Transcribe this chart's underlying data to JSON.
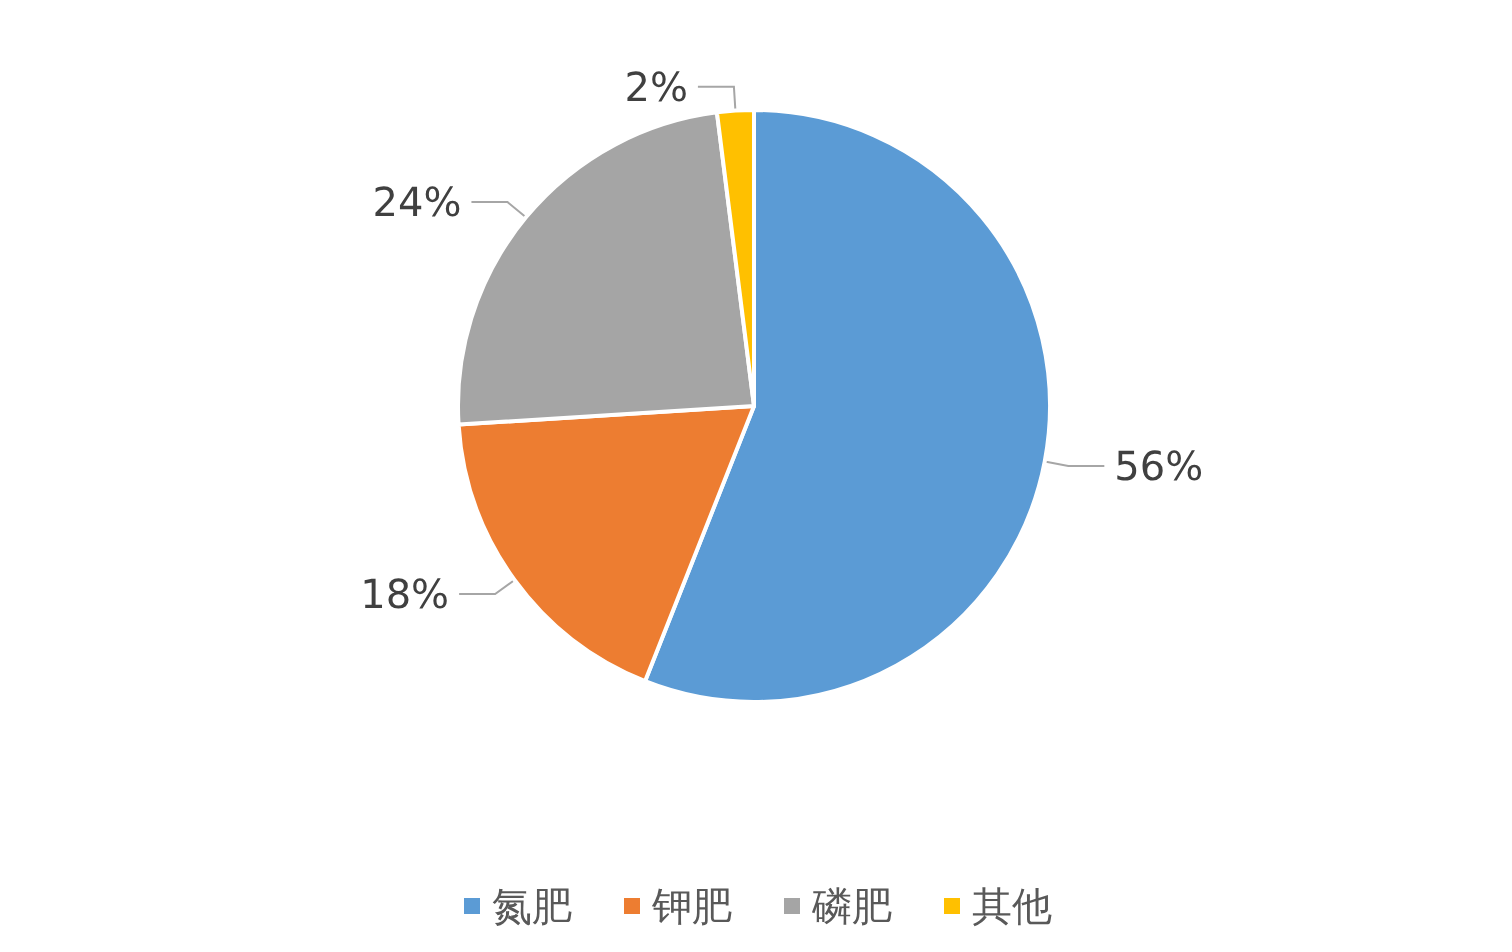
{
  "chart_data": {
    "type": "pie",
    "categories": [
      "氮肥",
      "钾肥",
      "磷肥",
      "其他"
    ],
    "values": [
      56,
      18,
      24,
      2
    ],
    "colors": [
      "#5b9bd5",
      "#ed7d31",
      "#a5a5a5",
      "#ffc000"
    ],
    "value_labels": [
      "56%",
      "18%",
      "24%",
      "2%"
    ],
    "legend": "bottom"
  }
}
